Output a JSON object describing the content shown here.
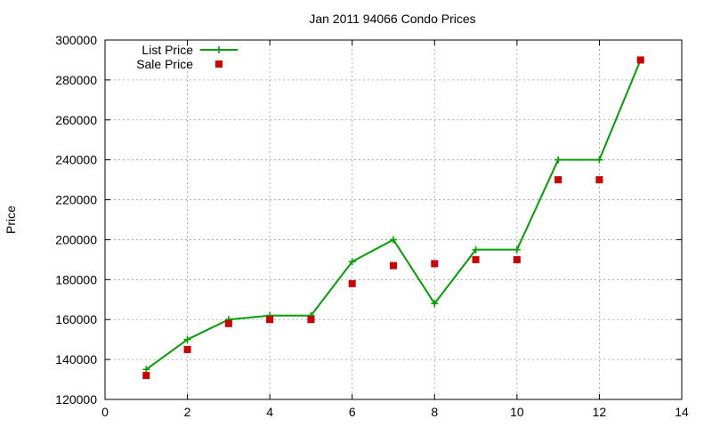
{
  "chart_data": {
    "type": "line",
    "title": "Jan 2011 94066 Condo Prices",
    "xlabel": "",
    "ylabel": "Price",
    "xlim": [
      0,
      14
    ],
    "ylim": [
      120000,
      300000
    ],
    "x_ticks": [
      0,
      2,
      4,
      6,
      8,
      10,
      12,
      14
    ],
    "y_ticks": [
      120000,
      140000,
      160000,
      180000,
      200000,
      220000,
      240000,
      260000,
      280000,
      300000
    ],
    "x_tick_labels": [
      "0",
      "2",
      "4",
      "6",
      "8",
      "10",
      "12",
      "14"
    ],
    "y_tick_labels": [
      "120000",
      "140000",
      "160000",
      "180000",
      "200000",
      "220000",
      "240000",
      "260000",
      "280000",
      "300000"
    ],
    "grid": true,
    "legend_position": "top-left",
    "series": [
      {
        "name": "List Price",
        "style": "line-with-plus-markers",
        "color": "#00a000",
        "x": [
          1,
          2,
          3,
          4,
          5,
          6,
          7,
          8,
          9,
          10,
          11,
          12,
          13
        ],
        "y": [
          135000,
          150000,
          160000,
          162000,
          162000,
          189000,
          200000,
          168000,
          195000,
          195000,
          240000,
          240000,
          290000
        ]
      },
      {
        "name": "Sale Price",
        "style": "square-markers",
        "color": "#cc0000",
        "x": [
          1,
          2,
          3,
          4,
          5,
          6,
          7,
          8,
          9,
          10,
          11,
          12,
          13
        ],
        "y": [
          132000,
          145000,
          158000,
          160000,
          160000,
          178000,
          187000,
          188000,
          190000,
          190000,
          230000,
          230000,
          290000
        ]
      }
    ]
  }
}
